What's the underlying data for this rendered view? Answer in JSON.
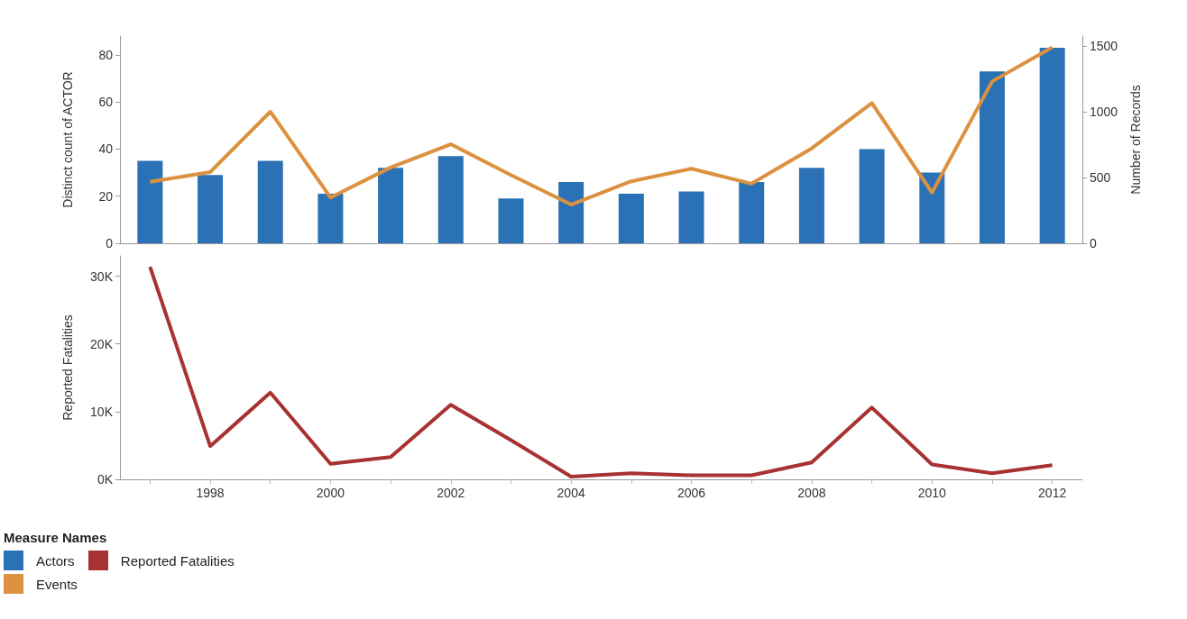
{
  "chart_data": [
    {
      "type": "bar",
      "ylabel": "Distinct count of ACTOR",
      "y2label": "Number of Records",
      "categories": [
        null,
        "1998",
        null,
        "2000",
        null,
        "2002",
        null,
        "2004",
        null,
        "2006",
        null,
        "2008",
        null,
        "2010",
        null,
        "2012"
      ],
      "series": [
        {
          "name": "Actors",
          "color": "#2a72b5",
          "values": [
            35,
            29,
            35,
            21,
            32,
            37,
            19,
            26,
            21,
            22,
            26,
            32,
            40,
            30,
            73,
            83
          ]
        },
        {
          "name": "Events",
          "type": "line",
          "axis": "y2",
          "color": "#dc913f",
          "values": [
            468,
            541,
            1000,
            348,
            576,
            753,
            519,
            294,
            471,
            567,
            453,
            721,
            1066,
            386,
            1230,
            1489
          ]
        }
      ],
      "ylim": [
        0,
        88
      ],
      "yticks": [
        0,
        20,
        40,
        60,
        80
      ],
      "y2lim": [
        0,
        1575
      ],
      "y2ticks": [
        0,
        500,
        1000,
        1500
      ],
      "tick_labels": "y",
      "grid": false,
      "marker": "none",
      "legend": "bottom left"
    },
    {
      "type": "line",
      "ylabel": "Reported Fatalities",
      "categories": [
        null,
        "1998",
        null,
        "2000",
        null,
        "2002",
        null,
        "2004",
        null,
        "2006",
        null,
        "2008",
        null,
        "2010",
        null,
        "2012"
      ],
      "series": [
        {
          "name": "Reported Fatalities",
          "color": "#a83232",
          "values": [
            31400,
            4900,
            12800,
            2300,
            3300,
            11000,
            5800,
            400,
            900,
            600,
            600,
            2500,
            10600,
            2200,
            900,
            2100
          ]
        }
      ],
      "ylim": [
        0,
        33000
      ],
      "yticks": [
        {
          "value": 0,
          "label": "0K"
        },
        {
          "value": 10000,
          "label": "10K"
        },
        {
          "value": 20000,
          "label": "20K"
        },
        {
          "value": 30000,
          "label": "30K"
        }
      ],
      "grid": false,
      "marker": "none",
      "legend": "bottom left",
      "legend_title": "Measure Names"
    }
  ]
}
